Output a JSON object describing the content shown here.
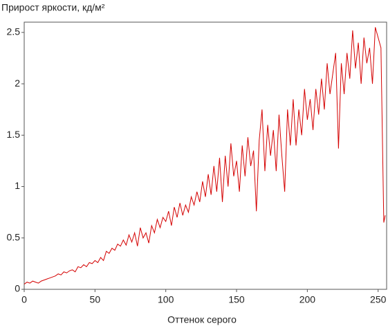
{
  "chart_data": {
    "type": "line",
    "title": "Прирост яркости, кд/м²",
    "x_label": "Оттенок серого",
    "x": [
      0,
      2,
      4,
      6,
      8,
      10,
      12,
      14,
      16,
      18,
      20,
      22,
      24,
      26,
      28,
      30,
      32,
      34,
      36,
      38,
      40,
      42,
      44,
      46,
      48,
      50,
      52,
      54,
      56,
      58,
      60,
      62,
      64,
      66,
      68,
      70,
      72,
      74,
      76,
      78,
      80,
      82,
      84,
      86,
      88,
      90,
      92,
      94,
      96,
      98,
      100,
      102,
      104,
      106,
      108,
      110,
      112,
      114,
      116,
      118,
      120,
      122,
      124,
      126,
      128,
      130,
      132,
      134,
      136,
      138,
      140,
      142,
      144,
      146,
      148,
      150,
      152,
      154,
      156,
      158,
      160,
      162,
      164,
      166,
      168,
      170,
      172,
      174,
      176,
      178,
      180,
      182,
      184,
      186,
      188,
      190,
      192,
      194,
      196,
      198,
      200,
      202,
      204,
      206,
      208,
      210,
      212,
      214,
      216,
      218,
      220,
      222,
      224,
      226,
      228,
      230,
      232,
      234,
      236,
      238,
      240,
      242,
      244,
      246,
      248,
      250,
      252,
      254,
      255
    ],
    "series": [
      {
        "name": "Прирост яркости",
        "color": "#d40000",
        "values": [
          0.05,
          0.07,
          0.06,
          0.08,
          0.07,
          0.06,
          0.08,
          0.09,
          0.1,
          0.11,
          0.12,
          0.13,
          0.15,
          0.14,
          0.17,
          0.16,
          0.18,
          0.19,
          0.17,
          0.22,
          0.21,
          0.24,
          0.22,
          0.26,
          0.25,
          0.28,
          0.26,
          0.31,
          0.28,
          0.37,
          0.35,
          0.4,
          0.38,
          0.44,
          0.42,
          0.48,
          0.43,
          0.53,
          0.46,
          0.55,
          0.42,
          0.6,
          0.5,
          0.55,
          0.45,
          0.62,
          0.55,
          0.68,
          0.6,
          0.7,
          0.66,
          0.76,
          0.62,
          0.8,
          0.7,
          0.84,
          0.72,
          0.82,
          0.75,
          0.9,
          0.82,
          0.95,
          0.85,
          1.05,
          0.9,
          1.12,
          0.92,
          1.2,
          0.95,
          1.28,
          0.85,
          1.3,
          1.0,
          1.42,
          1.1,
          1.25,
          0.95,
          1.4,
          1.1,
          1.48,
          1.2,
          1.35,
          0.76,
          1.45,
          1.75,
          1.15,
          1.6,
          1.3,
          1.55,
          1.15,
          1.7,
          1.3,
          0.95,
          1.75,
          1.4,
          1.85,
          1.4,
          1.75,
          1.5,
          1.95,
          1.65,
          1.85,
          1.55,
          1.95,
          1.7,
          2.05,
          1.75,
          2.2,
          1.9,
          2.1,
          2.3,
          1.37,
          2.2,
          1.9,
          2.3,
          2.05,
          2.52,
          2.15,
          2.4,
          2.0,
          2.45,
          2.2,
          2.35,
          2.0,
          2.55,
          2.45,
          2.35,
          0.65,
          0.72
        ]
      }
    ],
    "xlim": [
      0,
      256
    ],
    "ylim": [
      0,
      2.6
    ],
    "xticks": [
      0,
      50,
      100,
      150,
      200,
      250
    ],
    "yticks": [
      0,
      0.5,
      1,
      1.5,
      2,
      2.5
    ]
  }
}
